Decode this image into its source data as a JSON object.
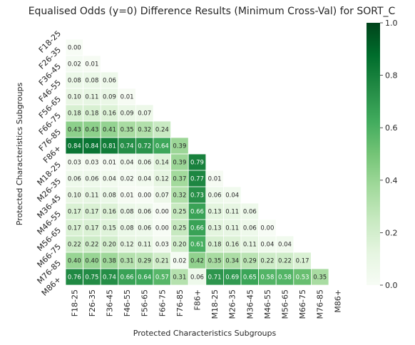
{
  "chart_data": {
    "type": "heatmap",
    "title": "Equalised Odds (y=0)  Difference Results (Minimum Cross-Val) for SORT_C",
    "xlabel": "Protected Characteristics Subgroups",
    "ylabel": "Protected Characteristics Subgroups",
    "categories": [
      "F18-25",
      "F26-35",
      "F36-45",
      "F46-55",
      "F56-65",
      "F66-75",
      "F76-85",
      "F86+",
      "M18-25",
      "M26-35",
      "M36-45",
      "M46-55",
      "M56-65",
      "M66-75",
      "M76-85",
      "M86+"
    ],
    "colorbar": {
      "range": [
        0.0,
        1.0
      ],
      "ticks": [
        "0.0",
        "0.2",
        "0.4",
        "0.6",
        "0.8",
        "1.0"
      ]
    },
    "matrix_lower_triangle": [
      [],
      [
        "0.00"
      ],
      [
        "0.02",
        "0.01"
      ],
      [
        "0.08",
        "0.08",
        "0.06"
      ],
      [
        "0.10",
        "0.11",
        "0.09",
        "0.01"
      ],
      [
        "0.18",
        "0.18",
        "0.16",
        "0.09",
        "0.07"
      ],
      [
        "0.43",
        "0.43",
        "0.41",
        "0.35",
        "0.32",
        "0.24"
      ],
      [
        "0.84",
        "0.84",
        "0.81",
        "0.74",
        "0.72",
        "0.64",
        "0.39"
      ],
      [
        "0.03",
        "0.03",
        "0.01",
        "0.04",
        "0.06",
        "0.14",
        "0.39",
        "0.79"
      ],
      [
        "0.06",
        "0.06",
        "0.04",
        "0.02",
        "0.04",
        "0.12",
        "0.37",
        "0.77",
        "0.01"
      ],
      [
        "0.10",
        "0.11",
        "0.08",
        "0.01",
        "0.00",
        "0.07",
        "0.32",
        "0.73",
        "0.06",
        "0.04"
      ],
      [
        "0.17",
        "0.17",
        "0.16",
        "0.08",
        "0.06",
        "0.00",
        "0.25",
        "0.66",
        "0.13",
        "0.11",
        "0.06"
      ],
      [
        "0.17",
        "0.17",
        "0.15",
        "0.08",
        "0.06",
        "0.00",
        "0.25",
        "0.66",
        "0.13",
        "0.11",
        "0.06",
        "0.00"
      ],
      [
        "0.22",
        "0.22",
        "0.20",
        "0.12",
        "0.11",
        "0.03",
        "0.20",
        "0.61",
        "0.18",
        "0.16",
        "0.11",
        "0.04",
        "0.04"
      ],
      [
        "0.40",
        "0.40",
        "0.38",
        "0.31",
        "0.29",
        "0.21",
        "0.02",
        "0.42",
        "0.35",
        "0.34",
        "0.29",
        "0.22",
        "0.22",
        "0.17"
      ],
      [
        "0.76",
        "0.75",
        "0.74",
        "0.66",
        "0.64",
        "0.57",
        "0.31",
        "0.06",
        "0.71",
        "0.69",
        "0.65",
        "0.58",
        "0.58",
        "0.53",
        "0.35"
      ]
    ]
  }
}
